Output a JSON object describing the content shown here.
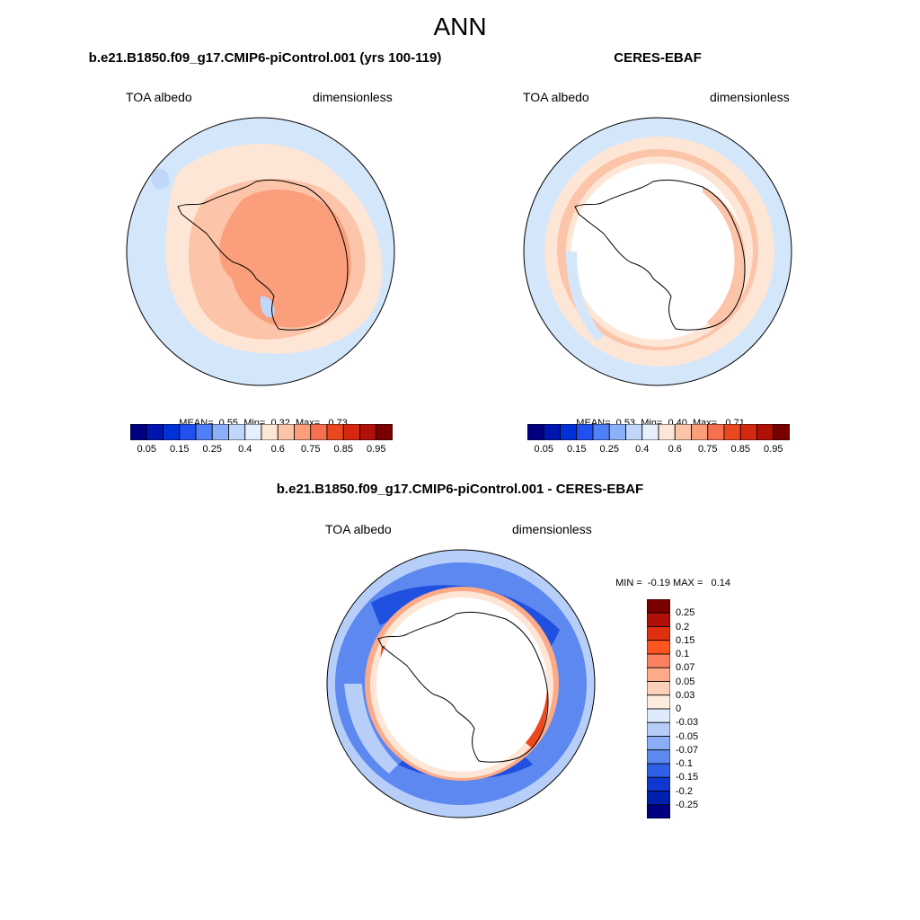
{
  "figure": {
    "title": "ANN"
  },
  "panels": [
    {
      "title": "b.e21.B1850.f09_g17.CMIP6-piControl.001 (yrs 100-119)",
      "left_label": "TOA albedo",
      "right_label": "dimensionless",
      "stats": {
        "mean_label": "MEAN=",
        "mean": "0.55",
        "min_label": "Min=",
        "min": "0.32",
        "max_label": "Max=",
        "max": "0.73"
      }
    },
    {
      "title": "CERES-EBAF",
      "left_label": "TOA albedo",
      "right_label": "dimensionless",
      "stats": {
        "mean_label": "MEAN=",
        "mean": "0.53",
        "min_label": "Min=",
        "min": "0.40",
        "max_label": "Max=",
        "max": "0.71"
      }
    },
    {
      "title": "b.e21.B1850.f09_g17.CMIP6-piControl.001 - CERES-EBAF",
      "left_label": "TOA albedo",
      "right_label": "dimensionless",
      "stats": {
        "min_label": "MIN =",
        "min": "-0.19",
        "max_label": "MAX =",
        "max": "0.14"
      }
    }
  ],
  "colorbar_abs": {
    "colors": [
      "#000080",
      "#0015b0",
      "#0030d8",
      "#2050f0",
      "#5080f8",
      "#8cb0f8",
      "#c0d6fa",
      "#e6f0fc",
      "#fde6d6",
      "#fcc4a8",
      "#fa9e7c",
      "#f67050",
      "#ec4820",
      "#d42810",
      "#b01008",
      "#7a0000"
    ],
    "tick_labels": [
      "0.05",
      "0.15",
      "0.25",
      "0.4",
      "0.6",
      "0.75",
      "0.85",
      "0.95"
    ]
  },
  "colorbar_diff": {
    "colors": [
      "#7a0000",
      "#b01008",
      "#e03010",
      "#ff5520",
      "#fa8060",
      "#fcaa88",
      "#fdd0b8",
      "#fdecde",
      "#dceafc",
      "#b6cef8",
      "#8aaef6",
      "#5c88f0",
      "#3060e8",
      "#1038d0",
      "#0020b0",
      "#000080"
    ],
    "tick_labels": [
      "0.25",
      "0.2",
      "0.15",
      "0.1",
      "0.07",
      "0.05",
      "0.03",
      "0",
      "-0.03",
      "-0.05",
      "-0.07",
      "-0.1",
      "-0.15",
      "-0.2",
      "-0.25"
    ]
  },
  "map_colors": {
    "ocean_light": "#d4e6fa",
    "pale_orange": "#fde6d6",
    "salmon": "#fcc4a8",
    "orange": "#fa9e7c",
    "diff_dark_blue": "#2050e0",
    "diff_mid_blue": "#5c88f0",
    "diff_light_blue": "#b6cef8",
    "diff_red": "#ec4820",
    "diff_salmon": "#fcaa88"
  }
}
